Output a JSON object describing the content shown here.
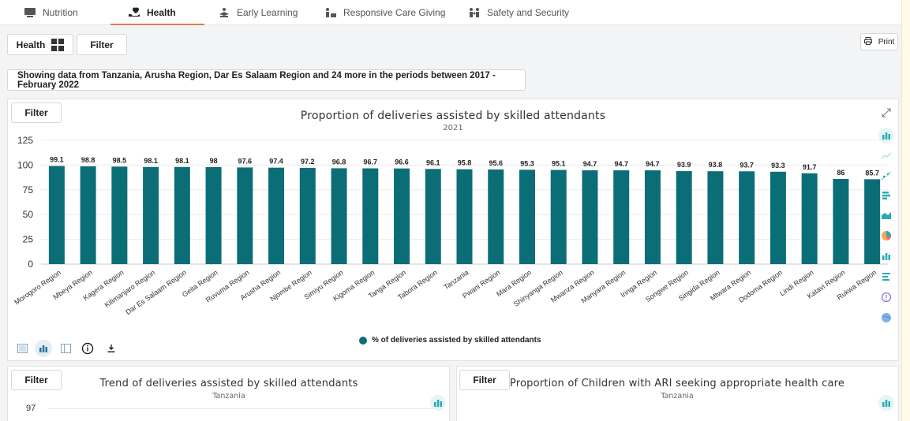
{
  "tabs": [
    {
      "label": "Nutrition",
      "icon": "nutrition-icon",
      "active": false
    },
    {
      "label": "Health",
      "icon": "health-icon",
      "active": true
    },
    {
      "label": "Early Learning",
      "icon": "early-learning-icon",
      "active": false
    },
    {
      "label": "Responsive Care Giving",
      "icon": "responsive-care-icon",
      "active": false
    },
    {
      "label": "Safety and Security",
      "icon": "safety-icon",
      "active": false
    }
  ],
  "toolbar": {
    "health_label": "Health",
    "filter_label": "Filter",
    "print_label": "Print"
  },
  "info_text": "Showing data from Tanzania, Arusha Region, Dar Es Salaam Region and 24 more in the periods between 2017 - February 2022",
  "colors": {
    "bar": "#0b6e77",
    "accent": "#e07a4d",
    "icon_teal": "#2aa9b7"
  },
  "main_card": {
    "filter_label": "Filter"
  },
  "chart_data": {
    "type": "bar",
    "title": "Proportion of deliveries assisted by skilled attendants",
    "subtitle": "2021",
    "categories": [
      "Morogoro Region",
      "Mbeya Region",
      "Kagera Region",
      "Kilimanjaro Region",
      "Dar Es Salaam Region",
      "Geita Region",
      "Ruvuma Region",
      "Arusha Region",
      "Njombe Region",
      "Simiyu Region",
      "Kigoma Region",
      "Tanga Region",
      "Tabora Region",
      "Tanzania",
      "Pwani Region",
      "Mara Region",
      "Shinyanga Region",
      "Mwanza Region",
      "Manyara Region",
      "Iringa Region",
      "Songwe Region",
      "Singida Region",
      "Mtwara Region",
      "Dodoma Region",
      "Lindi Region",
      "Katavi Region",
      "Rukwa Region"
    ],
    "series": [
      {
        "name": "% of deliveries assisted by skilled attendants",
        "values": [
          99.1,
          98.8,
          98.5,
          98.1,
          98.1,
          98,
          97.6,
          97.4,
          97.2,
          96.8,
          96.7,
          96.6,
          96.1,
          95.8,
          95.6,
          95.3,
          95.1,
          94.7,
          94.7,
          94.7,
          93.9,
          93.8,
          93.7,
          93.3,
          91.7,
          86,
          85.7
        ]
      }
    ],
    "data_labels": [
      "99.1",
      "98.8",
      "98.5",
      "98.1",
      "98.1",
      "98",
      "97.6",
      "97.4",
      "97.2",
      "96.8",
      "96.7",
      "96.6",
      "96.1",
      "95.8",
      "95.6",
      "95.3",
      "95.1",
      "94.7",
      "94.7",
      "94.7",
      "93.9",
      "93.8",
      "93.7",
      "93.3",
      "91.7",
      "86",
      "85.7"
    ],
    "yticks": [
      0,
      25,
      50,
      75,
      100,
      125
    ],
    "ylim": [
      0,
      125
    ],
    "legend_position": "bottom-center",
    "grid": true
  },
  "left_card": {
    "filter_label": "Filter",
    "title": "Trend of deliveries assisted by skilled attendants",
    "subtitle": "Tanzania",
    "first_tick": "97"
  },
  "right_card": {
    "filter_label": "Filter",
    "title": "Proportion of Children with ARI seeking appropriate health care",
    "subtitle": "Tanzania"
  }
}
